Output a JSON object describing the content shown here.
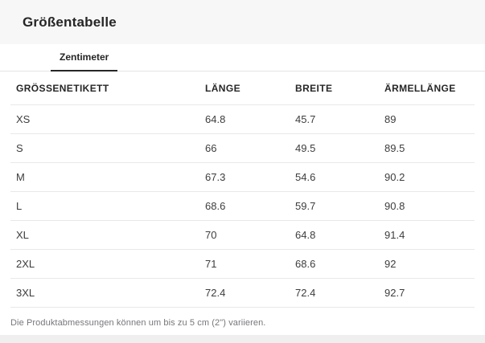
{
  "header": {
    "title": "Größentabelle"
  },
  "tabs": {
    "unit_tab_label": "Zentimeter"
  },
  "table": {
    "headers": [
      "GRÖSSENETIKETT",
      "LÄNGE",
      "BREITE",
      "ÄRMELLÄNGE"
    ],
    "rows": [
      {
        "size": "XS",
        "laenge": "64.8",
        "breite": "45.7",
        "aermellaenge": "89"
      },
      {
        "size": "S",
        "laenge": "66",
        "breite": "49.5",
        "aermellaenge": "89.5"
      },
      {
        "size": "M",
        "laenge": "67.3",
        "breite": "54.6",
        "aermellaenge": "90.2"
      },
      {
        "size": "L",
        "laenge": "68.6",
        "breite": "59.7",
        "aermellaenge": "90.8"
      },
      {
        "size": "XL",
        "laenge": "70",
        "breite": "64.8",
        "aermellaenge": "91.4"
      },
      {
        "size": "2XL",
        "laenge": "71",
        "breite": "68.6",
        "aermellaenge": "92"
      },
      {
        "size": "3XL",
        "laenge": "72.4",
        "breite": "72.4",
        "aermellaenge": "92.7"
      }
    ]
  },
  "footnote": "Die Produktabmessungen können um bis zu 5 cm (2\") variieren.",
  "colors": {
    "header_band": "#f7f7f7",
    "text_primary": "#262626",
    "text_secondary": "#77777c",
    "divider": "#e8e8ea",
    "tab_underline": "#262626",
    "bottom_band": "#efefef"
  }
}
